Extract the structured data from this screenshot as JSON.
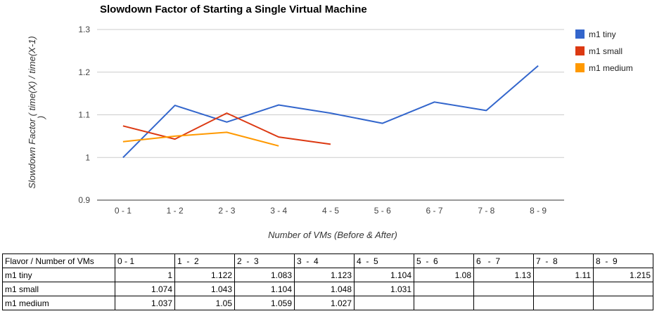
{
  "chart_data": {
    "type": "line",
    "title": "Slowdown Factor of Starting a Single Virtual Machine",
    "xlabel": "Number of VMs (Before & After)",
    "ylabel_line1": "Slowdown Factor ( time(X) / time(X-1)",
    "ylabel_line2": ")",
    "categories": [
      "0 - 1",
      "1 - 2",
      "2 - 3",
      "3 - 4",
      "4 - 5",
      "5 - 6",
      "6 - 7",
      "7 - 8",
      "8 - 9"
    ],
    "ylim": [
      0.9,
      1.3
    ],
    "yticks": [
      1.3,
      1.2,
      1.1,
      1,
      0.9
    ],
    "grid": true,
    "legend_position": "right",
    "series": [
      {
        "name": "m1 tiny",
        "color": "#3366cc",
        "values": [
          1,
          1.122,
          1.083,
          1.123,
          1.104,
          1.08,
          1.13,
          1.11,
          1.215
        ]
      },
      {
        "name": "m1 small",
        "color": "#dc3912",
        "values": [
          1.074,
          1.043,
          1.104,
          1.048,
          1.031,
          null,
          null,
          null,
          null
        ]
      },
      {
        "name": "m1 medium",
        "color": "#ff9900",
        "values": [
          1.037,
          1.05,
          1.059,
          1.027,
          null,
          null,
          null,
          null,
          null
        ]
      }
    ]
  },
  "table": {
    "header": [
      "Flavor / Number of VMs",
      "0 - 1",
      "1  -  2",
      "2  -  3",
      "3  -  4",
      "4  -  5",
      "5  -  6",
      "6   -  7",
      "7  -  8",
      "8  -  9"
    ],
    "rows": [
      [
        "m1 tiny",
        "1",
        "1.122",
        "1.083",
        "1.123",
        "1.104",
        "1.08",
        "1.13",
        "1.11",
        "1.215"
      ],
      [
        "m1 small",
        "1.074",
        "1.043",
        "1.104",
        "1.048",
        "1.031",
        "",
        "",
        "",
        ""
      ],
      [
        "m1 medium",
        "1.037",
        "1.05",
        "1.059",
        "1.027",
        "",
        "",
        "",
        "",
        ""
      ]
    ]
  }
}
